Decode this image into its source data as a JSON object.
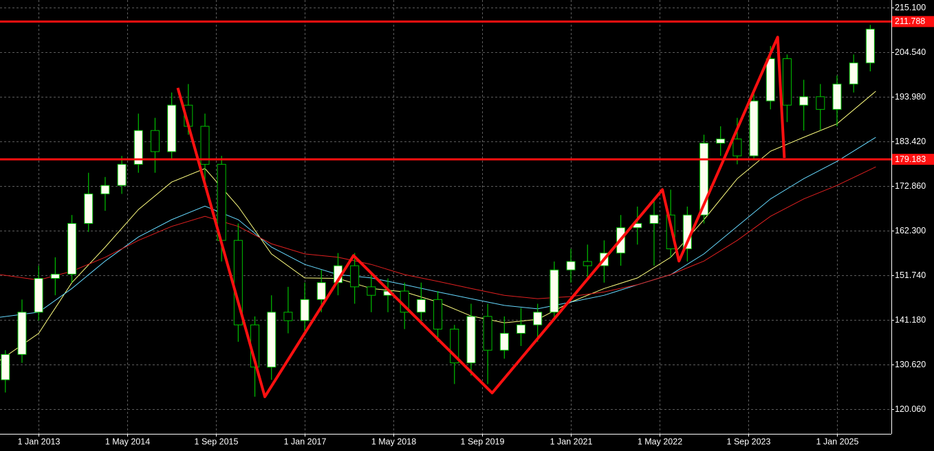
{
  "chart_data": {
    "type": "candlestick",
    "x": [
      "1 Jul 2012",
      "1 Oct 2012",
      "1 Jan 2013",
      "1 Apr 2013",
      "1 Jul 2013",
      "1 Oct 2013",
      "1 Jan 2014",
      "1 Apr 2014",
      "1 Jul 2014",
      "1 Oct 2014",
      "1 Jan 2015",
      "1 Apr 2015",
      "1 Jul 2015",
      "1 Oct 2015",
      "1 Jan 2016",
      "1 Apr 2016",
      "1 Jul 2016",
      "1 Oct 2016",
      "1 Jan 2017",
      "1 Apr 2017",
      "1 Jul 2017",
      "1 Oct 2017",
      "1 Jan 2018",
      "1 Apr 2018",
      "1 Jul 2018",
      "1 Oct 2018",
      "1 Jan 2019",
      "1 Apr 2019",
      "1 Jul 2019",
      "1 Oct 2019",
      "1 Jan 2020",
      "1 Apr 2020",
      "1 Jul 2020",
      "1 Oct 2020",
      "1 Jan 2021",
      "1 Apr 2021",
      "1 Jul 2021",
      "1 Oct 2021",
      "1 Jan 2022",
      "1 Apr 2022",
      "1 Jul 2022",
      "1 Oct 2022",
      "1 Jan 2023",
      "1 Apr 2023",
      "1 Jul 2023",
      "1 Oct 2023",
      "1 Jan 2024",
      "1 Apr 2024",
      "1 Jul 2024",
      "1 Oct 2024",
      "1 Jan 2025",
      "1 Apr 2025",
      "1 Jul 2025"
    ],
    "open": [
      127,
      133,
      143,
      151,
      152,
      164,
      171,
      173,
      178,
      186,
      181,
      192,
      187,
      178,
      160,
      140,
      130,
      143,
      141,
      146,
      150,
      154,
      149,
      147,
      148,
      143,
      146,
      139,
      131,
      142,
      134,
      138,
      140,
      143,
      153,
      155,
      154,
      157,
      163,
      164,
      166,
      158,
      166,
      183,
      184,
      180,
      193,
      203,
      192,
      194,
      191,
      197,
      202
    ],
    "high": [
      134,
      146,
      154,
      156,
      166,
      176,
      175,
      180,
      190,
      189,
      195,
      197,
      190,
      180,
      164,
      142,
      147,
      149,
      150,
      153,
      157,
      157,
      152,
      151,
      150,
      150,
      148,
      140,
      145,
      145,
      142,
      144,
      145,
      155,
      158,
      159,
      160,
      166,
      168,
      170,
      172,
      168,
      185,
      187,
      189,
      195,
      206,
      204,
      198,
      197,
      199,
      204,
      211
    ],
    "low": [
      124,
      131,
      141,
      147,
      150,
      162,
      167,
      171,
      176,
      176,
      179,
      185,
      174,
      155,
      136,
      123,
      127,
      138,
      138,
      143,
      147,
      145,
      143,
      143,
      139,
      140,
      136,
      126,
      128,
      126,
      132,
      135,
      136,
      141,
      150,
      151,
      150,
      154,
      159,
      154,
      156,
      155,
      164,
      180,
      178,
      179,
      191,
      188,
      186,
      186,
      187,
      195,
      200
    ],
    "close": [
      133,
      143,
      151,
      152,
      164,
      171,
      173,
      178,
      186,
      181,
      192,
      187,
      178,
      160,
      140,
      130,
      143,
      141,
      146,
      150,
      154,
      149,
      147,
      148,
      143,
      146,
      139,
      131,
      142,
      134,
      138,
      140,
      143,
      153,
      155,
      154,
      157,
      163,
      164,
      166,
      158,
      166,
      183,
      184,
      180,
      193,
      203,
      192,
      194,
      191,
      197,
      202,
      210
    ],
    "up_color": "#fffff0",
    "down_color": "#000000",
    "wick_color": "#00c000",
    "ma_x": [
      "1 Jun 2012",
      "1 Jan 2013",
      "1 Jul 2013",
      "1 Jan 2014",
      "1 Jul 2014",
      "1 Jan 2015",
      "1 Jul 2015",
      "1 Jan 2016",
      "1 Jul 2016",
      "1 Jan 2017",
      "1 Jul 2017",
      "1 Jan 2018",
      "1 Jul 2018",
      "1 Jan 2019",
      "1 Jul 2019",
      "1 Jan 2020",
      "1 Jul 2020",
      "1 Jan 2021",
      "1 Jul 2021",
      "1 Jan 2022",
      "1 Jul 2022",
      "1 Jan 2023",
      "1 Jul 2023",
      "1 Jan 2024",
      "1 Jul 2024",
      "1 Jan 2025",
      "1 Aug 2025"
    ],
    "moving_averages": [
      {
        "color": "#ffff80",
        "values": [
          131.6,
          138,
          150,
          158.4,
          167.3,
          173.8,
          177,
          168,
          156.8,
          151.1,
          151,
          148.6,
          147.8,
          145.4,
          142.1,
          140.5,
          141.3,
          145.4,
          148.6,
          151.1,
          156,
          164.9,
          174.6,
          181.1,
          184.4,
          187.6,
          195.3
        ]
      },
      {
        "color": "#66d9ff",
        "values": [
          141.8,
          143,
          148.6,
          155.1,
          160.8,
          164.9,
          168.1,
          164.9,
          158.4,
          154.3,
          151.9,
          151.1,
          149.5,
          147.8,
          146.2,
          144.6,
          143.8,
          145.4,
          147,
          149.5,
          151.9,
          156.8,
          163.3,
          169.8,
          174.6,
          178.7,
          184.4
        ]
      },
      {
        "color": "#e02020",
        "values": [
          151.9,
          150.6,
          152.7,
          156,
          160,
          163.3,
          165.7,
          163.3,
          159.2,
          156.8,
          156,
          154.3,
          151.9,
          150.3,
          148.6,
          147,
          146.2,
          146.7,
          147.8,
          149.5,
          151.9,
          155.1,
          160,
          165.7,
          169.8,
          173,
          177.4
        ]
      }
    ],
    "zigzag": {
      "color": "#ff1010",
      "x": [
        "4 Feb 2015",
        "25 May 2016",
        "25 Sep 2017",
        "25 Oct 2019",
        "16 May 2022",
        "16 Aug 2022",
        "10 Feb 2024",
        "16 Mar 2024"
      ],
      "values": [
        196.1,
        123,
        156.4,
        123.9,
        172,
        155.1,
        208.1,
        179.5
      ]
    },
    "levels": [
      211.788,
      179.183
    ],
    "level_color": "#ff1010",
    "xlim": [
      "2 Jun 2012",
      "25 Oct 2025"
    ],
    "xticks": [
      "1 Jan 2013",
      "1 May 2014",
      "1 Sep 2015",
      "1 Jan 2017",
      "1 May 2018",
      "1 Sep 2019",
      "1 Jan 2021",
      "1 May 2022",
      "1 Sep 2023",
      "1 Jan 2025"
    ],
    "ylim": [
      114.21,
      216.89
    ],
    "yticks": [
      {
        "value": 215.1,
        "label": "215.100"
      },
      {
        "value": 204.54,
        "label": "204.540"
      },
      {
        "value": 193.98,
        "label": "193.980"
      },
      {
        "value": 183.42,
        "label": "183.420"
      },
      {
        "value": 172.86,
        "label": "172.860"
      },
      {
        "value": 162.3,
        "label": "162.300"
      },
      {
        "value": 151.74,
        "label": "151.740"
      },
      {
        "value": 141.18,
        "label": "141.180"
      },
      {
        "value": 130.62,
        "label": "130.620"
      },
      {
        "value": 120.06,
        "label": "120.060"
      }
    ],
    "grid": true
  }
}
